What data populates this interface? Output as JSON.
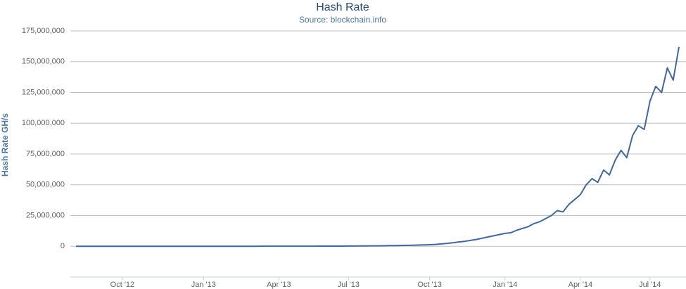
{
  "chart_data": {
    "type": "line",
    "title": "Hash Rate",
    "subtitle": "Source: blockchain.info",
    "y_label": "Hash Rate GH/s",
    "categories": [
      null,
      null,
      null,
      null,
      null,
      null,
      null,
      null,
      "Oct '12",
      null,
      null,
      null,
      null,
      null,
      null,
      null,
      null,
      null,
      null,
      null,
      null,
      null,
      "Jan '13",
      null,
      null,
      null,
      null,
      null,
      null,
      null,
      null,
      null,
      null,
      null,
      null,
      "Apr '13",
      null,
      null,
      null,
      null,
      null,
      null,
      null,
      null,
      null,
      null,
      null,
      "Jul '13",
      null,
      null,
      null,
      null,
      null,
      null,
      null,
      null,
      null,
      null,
      null,
      null,
      null,
      "Oct '13",
      null,
      null,
      null,
      null,
      null,
      null,
      null,
      null,
      null,
      null,
      null,
      null,
      "Jan '14",
      null,
      null,
      null,
      null,
      null,
      null,
      null,
      null,
      null,
      null,
      null,
      null,
      "Apr '14",
      null,
      null,
      null,
      null,
      null,
      null,
      null,
      null,
      null,
      null,
      null,
      "Jul '14",
      null,
      null,
      null,
      null,
      null
    ],
    "values": [
      22000,
      23000,
      24000,
      22000,
      25000,
      24000,
      26000,
      25000,
      23000,
      24000,
      26000,
      27000,
      25000,
      28000,
      27000,
      26000,
      25000,
      24000,
      23000,
      24000,
      25000,
      24000,
      25000,
      28000,
      30000,
      33000,
      36000,
      40000,
      42000,
      45000,
      50000,
      55000,
      58000,
      60000,
      62000,
      65000,
      70000,
      75000,
      80000,
      90000,
      100000,
      110000,
      115000,
      120000,
      130000,
      150000,
      170000,
      200000,
      220000,
      260000,
      300000,
      350000,
      400000,
      450000,
      520000,
      600000,
      700000,
      800000,
      900000,
      1000000,
      1100000,
      1300000,
      1500000,
      1900000,
      2400000,
      2900000,
      3500000,
      4000000,
      4800000,
      5500000,
      6500000,
      7500000,
      8500000,
      9500000,
      10500000,
      11000000,
      13000000,
      14500000,
      16000000,
      18500000,
      20000000,
      22500000,
      25000000,
      29000000,
      28000000,
      34000000,
      38000000,
      42000000,
      50000000,
      55000000,
      52000000,
      62000000,
      58000000,
      70000000,
      78000000,
      72000000,
      90000000,
      98000000,
      95000000,
      118000000,
      130000000,
      125000000,
      145000000,
      135000000,
      162000000
    ],
    "color": "#44679a",
    "ylim": [
      -25000000,
      175000000
    ],
    "yticks": [
      {
        "value": 0,
        "label": "0"
      },
      {
        "value": 25000000,
        "label": "25,000,000"
      },
      {
        "value": 50000000,
        "label": "50,000,000"
      },
      {
        "value": 75000000,
        "label": "75,000,000"
      },
      {
        "value": 100000000,
        "label": "100,000,000"
      },
      {
        "value": 125000000,
        "label": "125,000,000"
      },
      {
        "value": 150000000,
        "label": "150,000,000"
      },
      {
        "value": 175000000,
        "label": "175,000,000"
      }
    ],
    "grid": true
  }
}
